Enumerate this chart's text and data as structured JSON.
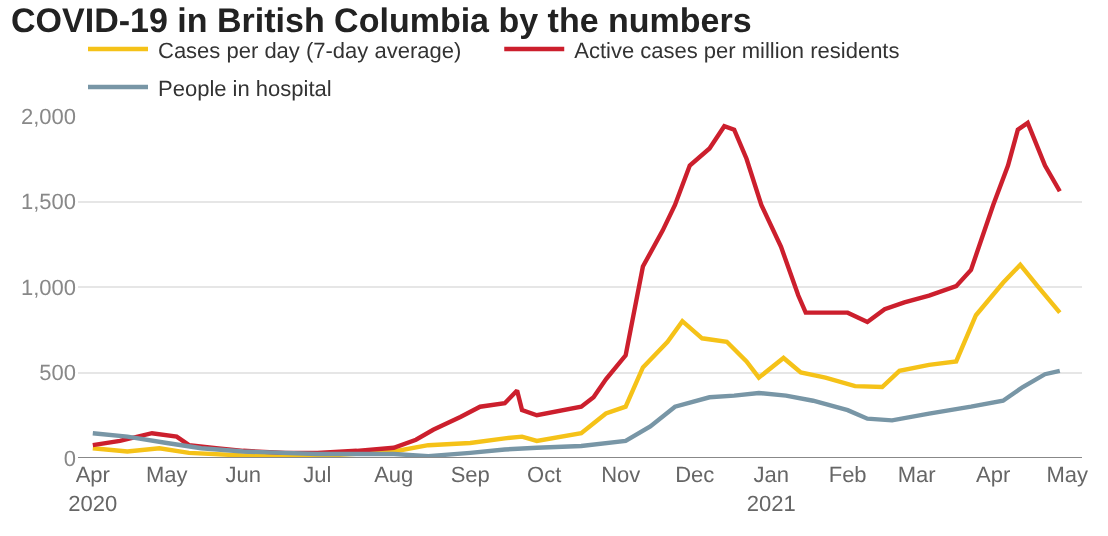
{
  "chart_data": {
    "type": "line",
    "title": "COVID-19 in British Columbia by the numbers",
    "xlim": [
      "2020-03-26",
      "2021-05-07"
    ],
    "xticks": [
      {
        "value": "2020-04-01",
        "label": "Apr\n2020"
      },
      {
        "value": "2020-05-01",
        "label": "May"
      },
      {
        "value": "2020-06-01",
        "label": "Jun"
      },
      {
        "value": "2020-07-01",
        "label": "Jul"
      },
      {
        "value": "2020-08-01",
        "label": "Aug"
      },
      {
        "value": "2020-09-01",
        "label": "Sep"
      },
      {
        "value": "2020-10-01",
        "label": "Oct"
      },
      {
        "value": "2020-11-01",
        "label": "Nov"
      },
      {
        "value": "2020-12-01",
        "label": "Dec"
      },
      {
        "value": "2021-01-01",
        "label": "Jan\n2021"
      },
      {
        "value": "2021-02-01",
        "label": "Feb"
      },
      {
        "value": "2021-03-01",
        "label": "Mar"
      },
      {
        "value": "2021-04-01",
        "label": "Apr"
      },
      {
        "value": "2021-05-01",
        "label": "May"
      }
    ],
    "ylim": [
      0,
      2000
    ],
    "yticks": [
      0,
      {
        "value": 500,
        "label": "500"
      },
      {
        "value": 1000,
        "label": "1,000"
      },
      {
        "value": 1500,
        "label": "1,500"
      },
      {
        "value": 2000,
        "label": "2,000"
      }
    ],
    "grid": "y",
    "legend": "top left",
    "marker": "none",
    "line_style": "solid",
    "series": [
      {
        "name": "Cases per day (7-day average)",
        "color": "#f5c218",
        "x": [
          "2020-04-01",
          "2020-04-15",
          "2020-04-28",
          "2020-05-10",
          "2020-06-01",
          "2020-07-01",
          "2020-08-01",
          "2020-08-15",
          "2020-09-01",
          "2020-09-15",
          "2020-09-22",
          "2020-09-28",
          "2020-10-16",
          "2020-10-26",
          "2020-11-03",
          "2020-11-10",
          "2020-11-20",
          "2020-11-26",
          "2020-12-04",
          "2020-12-14",
          "2020-12-22",
          "2020-12-27",
          "2021-01-06",
          "2021-01-13",
          "2021-01-23",
          "2021-02-04",
          "2021-02-15",
          "2021-02-22",
          "2021-03-06",
          "2021-03-17",
          "2021-03-25",
          "2021-04-05",
          "2021-04-12",
          "2021-04-19",
          "2021-04-28"
        ],
        "values": [
          57,
          38,
          57,
          30,
          15,
          11,
          38,
          75,
          88,
          115,
          125,
          100,
          145,
          260,
          300,
          530,
          680,
          800,
          700,
          680,
          565,
          470,
          585,
          500,
          470,
          420,
          415,
          510,
          545,
          565,
          835,
          1025,
          1130,
          1005,
          850
        ]
      },
      {
        "name": "Active cases per million residents",
        "color": "#cc1f2d",
        "x": [
          "2020-04-01",
          "2020-04-12",
          "2020-04-25",
          "2020-05-05",
          "2020-05-10",
          "2020-05-21",
          "2020-06-01",
          "2020-06-18",
          "2020-07-01",
          "2020-07-17",
          "2020-08-01",
          "2020-08-10",
          "2020-08-17",
          "2020-08-28",
          "2020-09-05",
          "2020-09-15",
          "2020-09-20",
          "2020-09-22",
          "2020-09-28",
          "2020-10-16",
          "2020-10-21",
          "2020-10-26",
          "2020-11-03",
          "2020-11-10",
          "2020-11-18",
          "2020-11-23",
          "2020-11-29",
          "2020-12-07",
          "2020-12-13",
          "2020-12-17",
          "2020-12-22",
          "2020-12-28",
          "2021-01-05",
          "2021-01-12",
          "2021-01-15",
          "2021-01-23",
          "2021-02-01",
          "2021-02-09",
          "2021-02-16",
          "2021-02-24",
          "2021-03-06",
          "2021-03-17",
          "2021-03-23",
          "2021-04-01",
          "2021-04-07",
          "2021-04-11",
          "2021-04-15",
          "2021-04-22",
          "2021-04-28"
        ],
        "values": [
          75,
          100,
          145,
          125,
          75,
          57,
          42,
          30,
          30,
          42,
          60,
          107,
          165,
          240,
          300,
          320,
          395,
          280,
          250,
          300,
          355,
          460,
          600,
          1120,
          1330,
          1480,
          1710,
          1810,
          1940,
          1920,
          1750,
          1480,
          1235,
          950,
          850,
          850,
          850,
          795,
          870,
          910,
          950,
          1005,
          1100,
          1480,
          1710,
          1920,
          1960,
          1710,
          1560
        ]
      },
      {
        "name": "People in hospital",
        "color": "#7896a6",
        "x": [
          "2020-04-01",
          "2020-04-15",
          "2020-05-01",
          "2020-05-15",
          "2020-06-01",
          "2020-07-01",
          "2020-08-01",
          "2020-08-15",
          "2020-09-01",
          "2020-09-15",
          "2020-09-28",
          "2020-10-16",
          "2020-11-03",
          "2020-11-13",
          "2020-11-23",
          "2020-12-07",
          "2020-12-17",
          "2020-12-27",
          "2021-01-07",
          "2021-01-18",
          "2021-02-01",
          "2021-02-09",
          "2021-02-19",
          "2021-03-06",
          "2021-03-23",
          "2021-04-05",
          "2021-04-13",
          "2021-04-22",
          "2021-04-28"
        ],
        "values": [
          145,
          125,
          88,
          57,
          38,
          23,
          23,
          11,
          30,
          50,
          60,
          70,
          100,
          185,
          300,
          355,
          365,
          380,
          365,
          335,
          280,
          230,
          220,
          260,
          300,
          335,
          415,
          490,
          510
        ]
      }
    ]
  }
}
